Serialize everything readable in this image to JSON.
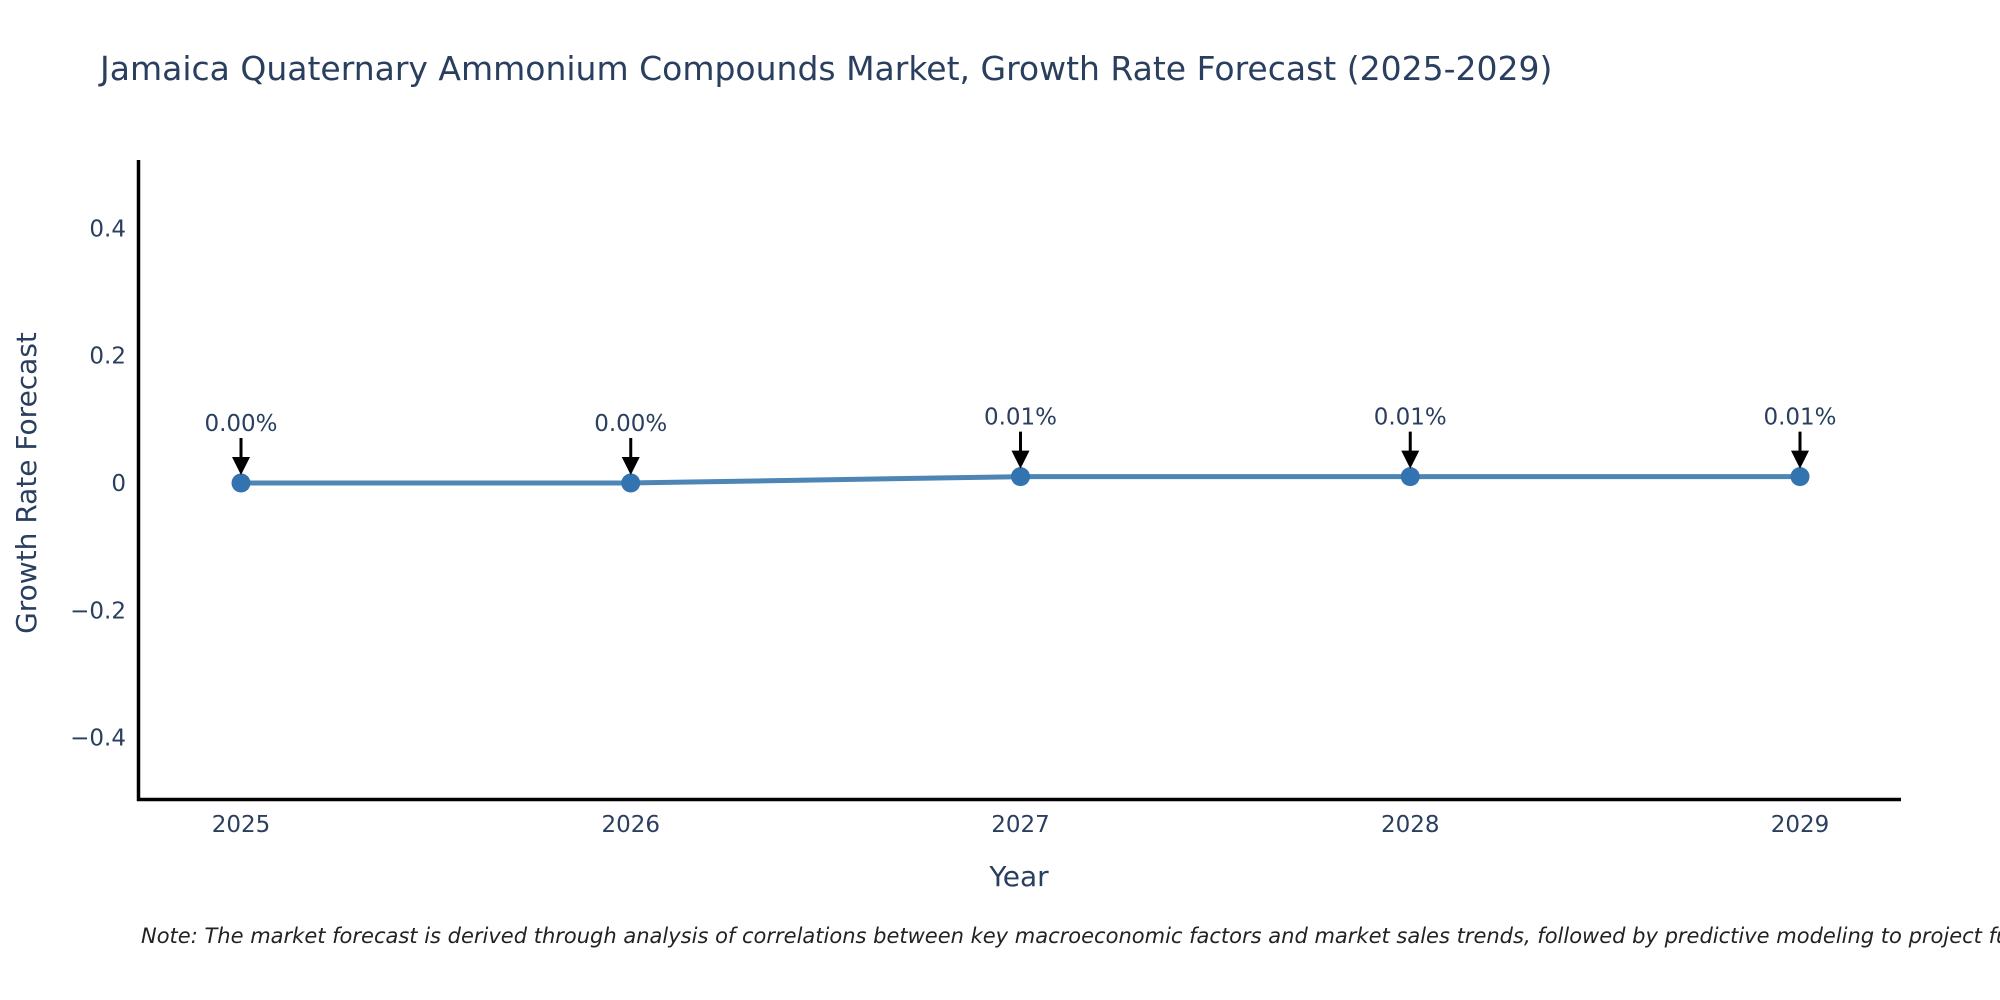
{
  "note": {
    "text": "Note: The market forecast is derived through analysis of correlations between key macroeconomic factors and market sales trends, followed by predictive modeling to project future sa"
  },
  "chart_data": {
    "type": "line",
    "title": "Jamaica Quaternary Ammonium Compounds Market, Growth Rate Forecast (2025-2029)",
    "xlabel": "Year",
    "ylabel": "Growth Rate Forecast",
    "x": [
      2025,
      2026,
      2027,
      2028,
      2029
    ],
    "xtick_labels": [
      "2025",
      "2026",
      "2027",
      "2028",
      "2029"
    ],
    "y": [
      0.0,
      0.0,
      0.01,
      0.01,
      0.01
    ],
    "point_labels": [
      "0.00%",
      "0.00%",
      "0.01%",
      "0.01%",
      "0.01%"
    ],
    "yticks": [
      0.4,
      0.2,
      0,
      -0.2,
      -0.4
    ],
    "ytick_labels": [
      "0.4",
      "0.2",
      "0",
      "−0.2",
      "−0.4"
    ],
    "ylim": [
      -0.5,
      0.51
    ],
    "grid": false,
    "legend_position": "none",
    "line_color": "#4d85b5",
    "marker_color": "#3273b0",
    "axis_color": "#000000",
    "text_color": "#2a3f5f",
    "annotation_arrow_color": "#000000"
  }
}
